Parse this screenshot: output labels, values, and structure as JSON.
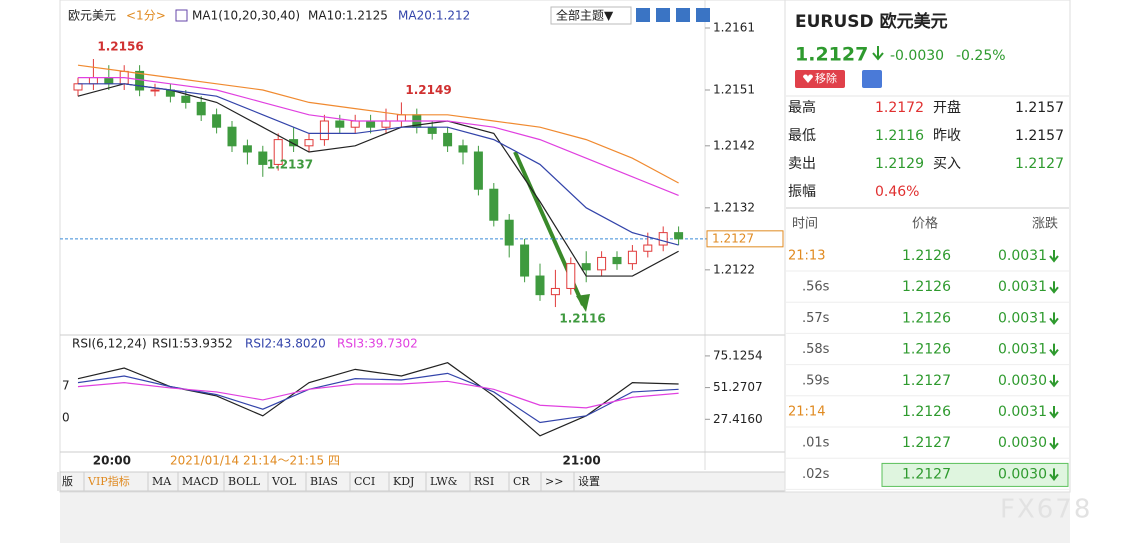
{
  "chart_header": {
    "name": "欧元美元",
    "period": "<1分>",
    "ma_label": "MA1(10,20,30,40)",
    "ma10": "MA10:1.2125",
    "ma20": "MA20:1.212",
    "theme": "全部主题▼"
  },
  "chart": {
    "type": "candlestick",
    "ylim": [
      1.21123,
      1.21639
    ],
    "yticks": [
      1.2161,
      1.2151,
      1.2142,
      1.2132,
      1.2122
    ],
    "last_price": 1.2127,
    "up_color": "#e03a3a",
    "down_color": "#3f9a3f",
    "candles": [
      [
        1.2151,
        1.2152,
        1.2153,
        1.215
      ],
      [
        1.2152,
        1.2153,
        1.2156,
        1.2151
      ],
      [
        1.2153,
        1.2152,
        1.2155,
        1.2151
      ],
      [
        1.2152,
        1.2154,
        1.2155,
        1.2151
      ],
      [
        1.2154,
        1.2151,
        1.2155,
        1.215
      ],
      [
        1.2151,
        1.2151,
        1.2152,
        1.215
      ],
      [
        1.2151,
        1.215,
        1.2152,
        1.2149
      ],
      [
        1.215,
        1.2149,
        1.2151,
        1.2148
      ],
      [
        1.2149,
        1.2147,
        1.215,
        1.2146
      ],
      [
        1.2147,
        1.2145,
        1.2148,
        1.2144
      ],
      [
        1.2145,
        1.2142,
        1.2146,
        1.2141
      ],
      [
        1.2142,
        1.2141,
        1.2143,
        1.2139
      ],
      [
        1.2141,
        1.2139,
        1.2142,
        1.2137
      ],
      [
        1.2139,
        1.2143,
        1.2144,
        1.2138
      ],
      [
        1.2143,
        1.2142,
        1.2145,
        1.2141
      ],
      [
        1.2142,
        1.2143,
        1.2144,
        1.2141
      ],
      [
        1.2143,
        1.2146,
        1.2147,
        1.2142
      ],
      [
        1.2146,
        1.2145,
        1.2147,
        1.2144
      ],
      [
        1.2145,
        1.2146,
        1.2147,
        1.2144
      ],
      [
        1.2146,
        1.2145,
        1.2147,
        1.2144
      ],
      [
        1.2145,
        1.2146,
        1.2148,
        1.2144
      ],
      [
        1.2146,
        1.2147,
        1.2149,
        1.2145
      ],
      [
        1.2147,
        1.2145,
        1.2148,
        1.2144
      ],
      [
        1.2145,
        1.2144,
        1.2146,
        1.2143
      ],
      [
        1.2144,
        1.2142,
        1.2145,
        1.2141
      ],
      [
        1.2142,
        1.2141,
        1.2143,
        1.2139
      ],
      [
        1.2141,
        1.2135,
        1.2142,
        1.2134
      ],
      [
        1.2135,
        1.213,
        1.2136,
        1.2129
      ],
      [
        1.213,
        1.2126,
        1.2131,
        1.2124
      ],
      [
        1.2126,
        1.2121,
        1.2127,
        1.212
      ],
      [
        1.2121,
        1.2118,
        1.2123,
        1.2117
      ],
      [
        1.2118,
        1.2119,
        1.2122,
        1.2116
      ],
      [
        1.2119,
        1.2123,
        1.2124,
        1.2118
      ],
      [
        1.2123,
        1.2122,
        1.2125,
        1.212
      ],
      [
        1.2122,
        1.2124,
        1.2125,
        1.2121
      ],
      [
        1.2124,
        1.2123,
        1.2125,
        1.2122
      ],
      [
        1.2123,
        1.2125,
        1.2126,
        1.2122
      ],
      [
        1.2125,
        1.2126,
        1.2128,
        1.2124
      ],
      [
        1.2126,
        1.2128,
        1.2129,
        1.2125
      ],
      [
        1.2128,
        1.2127,
        1.2129,
        1.2126
      ]
    ],
    "ma_x": [
      0,
      3,
      6,
      9,
      12,
      15,
      18,
      21,
      24,
      27,
      30,
      33,
      36,
      39
    ],
    "ma_series": [
      {
        "color": "#222222",
        "values": [
          1.215,
          1.2152,
          1.2151,
          1.2149,
          1.2145,
          1.2141,
          1.2142,
          1.2145,
          1.2146,
          1.2144,
          1.2133,
          1.2121,
          1.2121,
          1.2125
        ]
      },
      {
        "color": "#3344aa",
        "values": [
          1.2152,
          1.2152,
          1.2151,
          1.215,
          1.2147,
          1.2144,
          1.2144,
          1.2145,
          1.2145,
          1.2143,
          1.2139,
          1.2132,
          1.2128,
          1.2126
        ]
      },
      {
        "color": "#e040e0",
        "values": [
          1.2153,
          1.2153,
          1.2152,
          1.2151,
          1.2149,
          1.2147,
          1.2146,
          1.2146,
          1.2146,
          1.2145,
          1.2143,
          1.214,
          1.2137,
          1.2134
        ]
      },
      {
        "color": "#f08a30",
        "values": [
          1.2155,
          1.2154,
          1.2153,
          1.2152,
          1.2151,
          1.2149,
          1.2148,
          1.2147,
          1.2147,
          1.2146,
          1.2145,
          1.2143,
          1.214,
          1.2136
        ]
      }
    ],
    "annotations": [
      {
        "index": 1,
        "value": 1.2156,
        "color": "#d03030"
      },
      {
        "index": 21,
        "value": 1.2149,
        "color": "#d03030"
      },
      {
        "index": 12,
        "value": 1.2137,
        "color": "#3f9a3f"
      },
      {
        "index": 31,
        "value": 1.2116,
        "color": "#3f9a3f"
      }
    ],
    "x_labels": [
      {
        "index": 2,
        "label": "20:00"
      },
      {
        "index": 32.5,
        "label": "21:00"
      }
    ],
    "date_range": "2021/01/14 21:14～21:15 四"
  },
  "rsi": {
    "legend": {
      "title": "RSI(6,12,24)",
      "rsi1": "RSI1:53.9352",
      "rsi2": "RSI2:43.8020",
      "rsi3": "RSI3:39.7302"
    },
    "ylim": [
      4.3,
      87.1
    ],
    "yticks": [
      75.1254,
      51.2707,
      {
        "value": 27.416,
        "label": "27.4160"
      }
    ],
    "series": [
      {
        "color": "#222222",
        "values": [
          58,
          66,
          52,
          45,
          30,
          55,
          65,
          60,
          70,
          45,
          15,
          30,
          55,
          54
        ]
      },
      {
        "color": "#3344aa",
        "values": [
          55,
          60,
          52,
          46,
          35,
          50,
          58,
          57,
          62,
          48,
          25,
          30,
          48,
          50
        ]
      },
      {
        "color": "#e040e0",
        "values": [
          52,
          55,
          51,
          48,
          42,
          50,
          54,
          54,
          56,
          50,
          38,
          36,
          44,
          47
        ]
      }
    ]
  },
  "left_cut": [
    "7",
    "0"
  ],
  "tabs": [
    "版",
    "VIP指标",
    "MA",
    "MACD",
    "BOLL",
    "VOL",
    "BIAS",
    "CCI",
    "KDJ",
    "LW&",
    "RSI",
    "CR",
    ">>",
    "设置"
  ],
  "quote": {
    "title": "EURUSD 欧元美元",
    "price": "1.2127",
    "change": "-0.0030",
    "percent": "-0.25%",
    "remove": "移除"
  },
  "stats": [
    [
      "最高",
      "1.2172",
      "开盘",
      "1.2157"
    ],
    [
      "最低",
      "1.2116",
      "昨收",
      "1.2157"
    ],
    [
      "卖出",
      "1.2129",
      "买入",
      "1.2127"
    ],
    [
      "振幅",
      "0.46%"
    ]
  ],
  "trades": {
    "header": [
      "时间",
      "价格",
      "涨跌"
    ],
    "rows": [
      [
        "21:13",
        "1.2126",
        "0.0031"
      ],
      [
        ".56s",
        "1.2126",
        "0.0031"
      ],
      [
        ".57s",
        "1.2126",
        "0.0031"
      ],
      [
        ".58s",
        "1.2126",
        "0.0031"
      ],
      [
        ".59s",
        "1.2127",
        "0.0030"
      ],
      [
        "21:14",
        "1.2126",
        "0.0031"
      ],
      [
        ".01s",
        "1.2127",
        "0.0030"
      ],
      [
        ".02s",
        "1.2127",
        "0.0030"
      ]
    ]
  },
  "watermark": "FX678"
}
